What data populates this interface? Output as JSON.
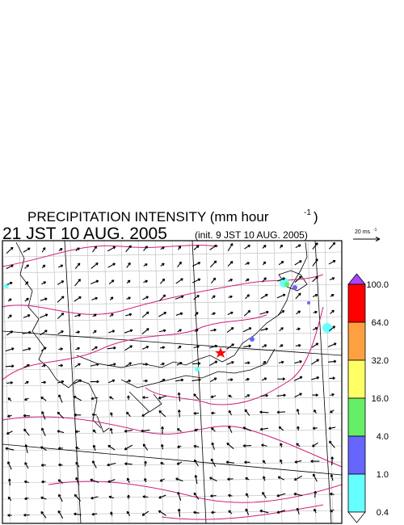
{
  "header": {
    "title": "PRECIPITATION INTENSITY (mm hour",
    "title_sup": "-1",
    "title_close": ")",
    "time": "21 JST 10 AUG. 2005",
    "init": "(init. 9 JST 10 AUG. 2005)"
  },
  "wind_scale": {
    "label": "20 ms",
    "label_sup": "-1"
  },
  "legend": {
    "levels": [
      "100.0",
      "64.0",
      "32.0",
      "16.0",
      "4.0",
      "1.0",
      "0.4"
    ],
    "colors": [
      "#ff0000",
      "#ffa040",
      "#ffff66",
      "#66ee66",
      "#6666ff",
      "#66ffff"
    ],
    "over_color": "#aa44ff",
    "under_color": "#ffffff"
  }
}
